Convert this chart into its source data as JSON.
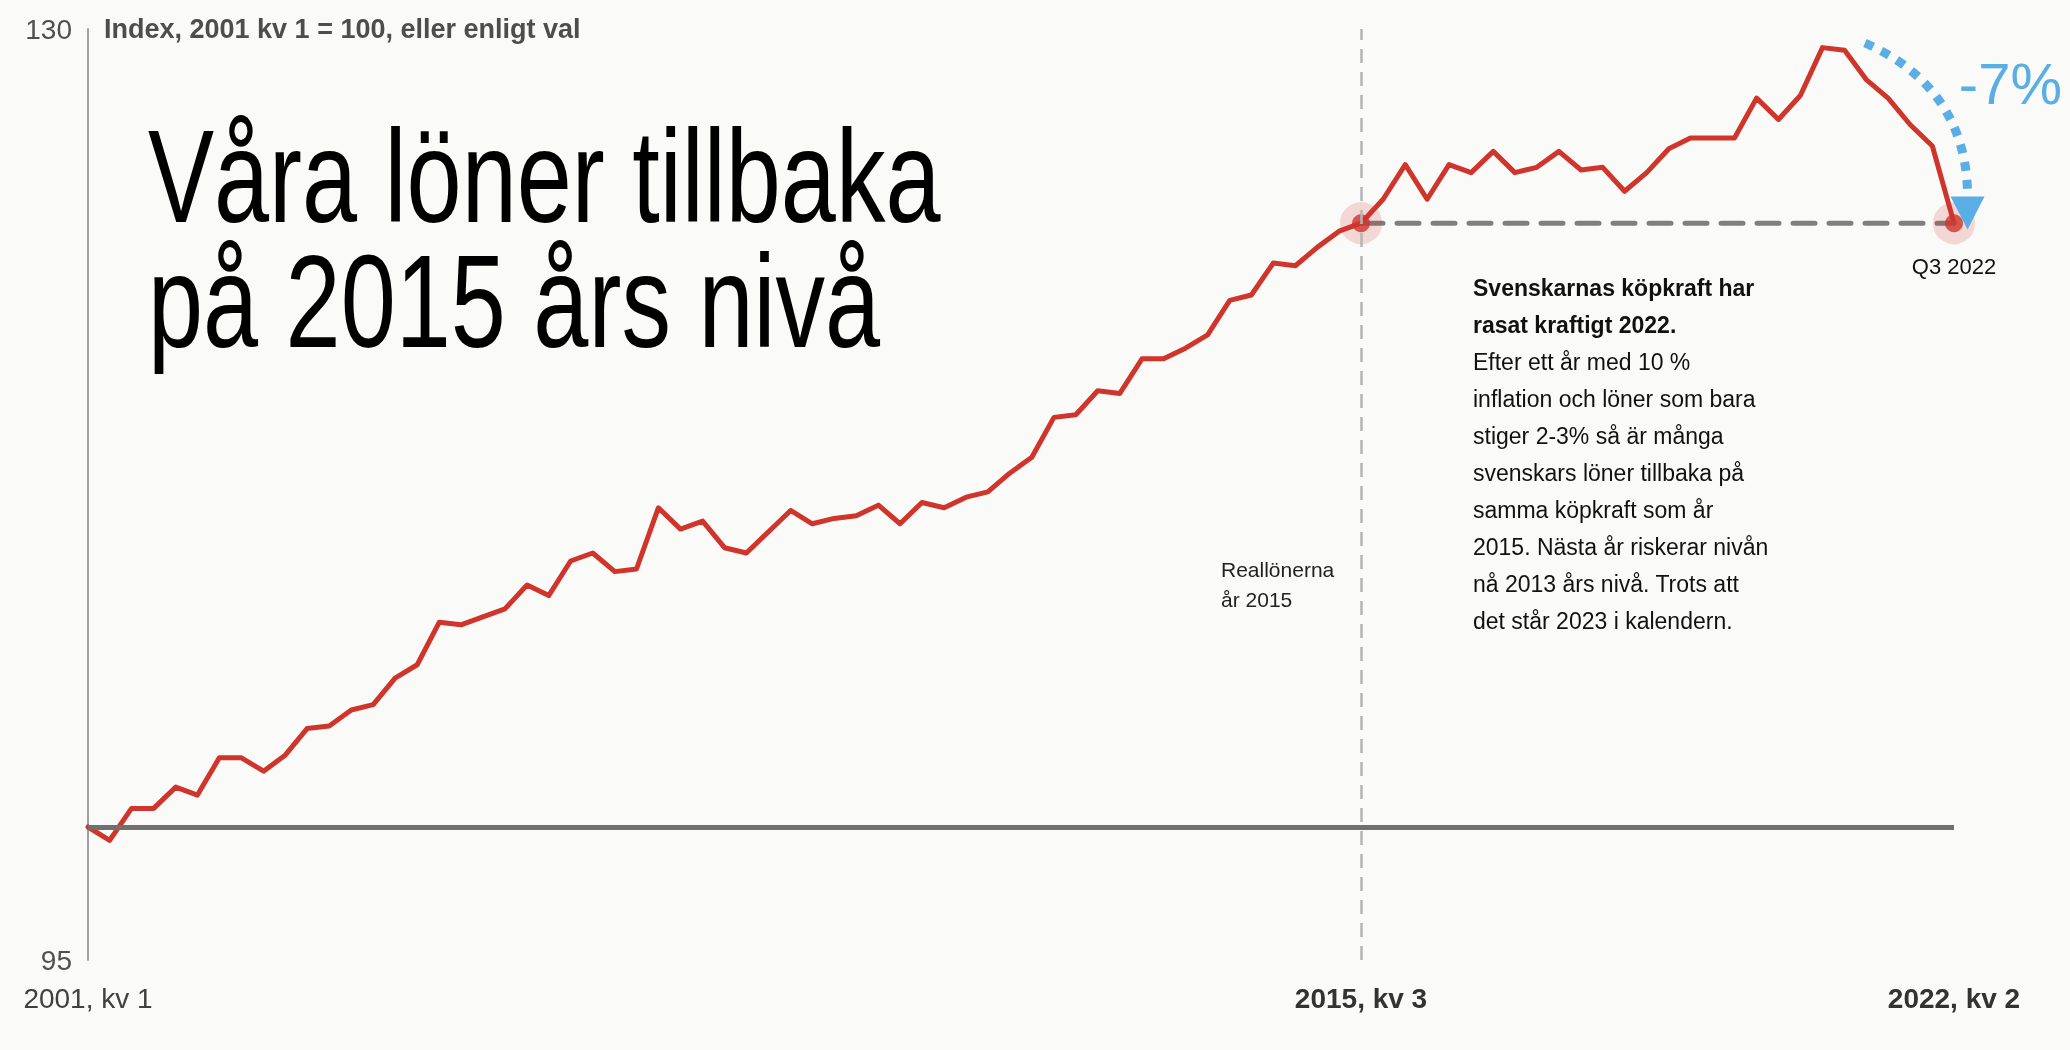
{
  "chart_data": {
    "type": "line",
    "title": "Våra löner tillbaka på 2015 års nivå",
    "ylabel": "Index, 2001 kv 1 = 100, eller enligt val",
    "x": [
      "2001-01",
      "2001-04",
      "2001-07",
      "2001-10",
      "2002-01",
      "2002-04",
      "2002-07",
      "2002-10",
      "2003-01",
      "2003-04",
      "2003-07",
      "2003-10",
      "2004-01",
      "2004-04",
      "2004-07",
      "2004-10",
      "2005-01",
      "2005-04",
      "2005-07",
      "2005-10",
      "2006-01",
      "2006-04",
      "2006-07",
      "2006-10",
      "2007-01",
      "2007-04",
      "2007-07",
      "2007-10",
      "2008-01",
      "2008-04",
      "2008-07",
      "2008-10",
      "2009-01",
      "2009-04",
      "2009-07",
      "2009-10",
      "2010-01",
      "2010-04",
      "2010-07",
      "2010-10",
      "2011-01",
      "2011-04",
      "2011-07",
      "2011-10",
      "2012-01",
      "2012-04",
      "2012-07",
      "2012-10",
      "2013-01",
      "2013-04",
      "2013-07",
      "2013-10",
      "2014-01",
      "2014-04",
      "2014-07",
      "2014-10",
      "2015-01",
      "2015-04",
      "2015-07",
      "2015-10",
      "2016-01",
      "2016-04",
      "2016-07",
      "2016-10",
      "2017-01",
      "2017-04",
      "2017-07",
      "2017-10",
      "2018-01",
      "2018-04",
      "2018-07",
      "2018-10",
      "2019-01",
      "2019-04",
      "2019-07",
      "2019-10",
      "2020-01",
      "2020-04",
      "2020-07",
      "2020-10",
      "2021-01",
      "2021-04",
      "2021-07",
      "2021-10",
      "2022-01",
      "2022-04"
    ],
    "series": [
      {
        "color": "#d0352c",
        "marker": "none",
        "line_style": "solid",
        "values": [
          100,
          99.5,
          100.7,
          100.7,
          101.5,
          101.2,
          102.6,
          102.6,
          102.1,
          102.7,
          103.7,
          103.8,
          104.4,
          104.6,
          105.6,
          106.1,
          107.7,
          107.6,
          107.9,
          108.2,
          109.1,
          108.7,
          110.0,
          110.3,
          109.6,
          109.7,
          112.0,
          111.2,
          111.5,
          110.5,
          110.3,
          111.1,
          111.9,
          111.4,
          111.6,
          111.7,
          112.1,
          111.4,
          112.2,
          112.0,
          112.4,
          112.6,
          113.3,
          113.9,
          115.4,
          115.5,
          116.4,
          116.3,
          117.6,
          117.6,
          118.0,
          118.5,
          119.8,
          120.0,
          121.2,
          121.1,
          121.8,
          122.4,
          122.7,
          123.6,
          124.9,
          123.6,
          124.9,
          124.6,
          125.4,
          124.6,
          124.8,
          125.4,
          124.7,
          124.8,
          123.9,
          124.6,
          125.5,
          125.9,
          125.9,
          125.9,
          127.4,
          126.6,
          127.5,
          129.3,
          129.2,
          128.1,
          127.4,
          126.4,
          125.6,
          122.7
        ]
      },
      {
        "color": "#7f7f7f",
        "marker": "none",
        "line_style": "dashed",
        "x": [
          "2015-07",
          "2022-04"
        ],
        "values": [
          122.7,
          122.7
        ]
      },
      {
        "type": "scatter",
        "color": "#d0352c",
        "marker": "circle",
        "x": [
          "2015-07",
          "2022-04"
        ],
        "values": [
          122.7,
          122.7
        ]
      }
    ],
    "xlim": [
      "2001-01",
      "2022-04"
    ],
    "xticks": [
      {
        "value": "2001-01",
        "label": "2001, kv 1"
      },
      {
        "value": "2015-07",
        "label": "2015, kv 3"
      },
      {
        "value": "2022-04",
        "label": "2022, kv 2"
      }
    ],
    "ylim": [
      95,
      130
    ],
    "yticks": [
      95,
      130
    ],
    "grid": false,
    "ref_lines": [
      {
        "axis": "x",
        "value": "2015-07",
        "label": "Reallönerna år 2015",
        "color": "#b5b5b5",
        "line_style": "dashed"
      },
      {
        "axis": "y",
        "value": 100,
        "color": "#707070",
        "line_style": "solid"
      }
    ],
    "annotations": [
      "Svenskarnas köpkraft har rasat kraftigt 2022.",
      "Efter ett år med 10 % inflation och löner som bara stiger 2-3% så är många svenskars löner tillbaka på samma köpkraft som år 2015. Nästa år riskerar nivån nå 2013 års nivå. Trots att det står 2023 i kalendern.",
      "-7%",
      {
        "text": "Q3 2022",
        "x": "2022-04",
        "y": 122.7
      }
    ]
  }
}
